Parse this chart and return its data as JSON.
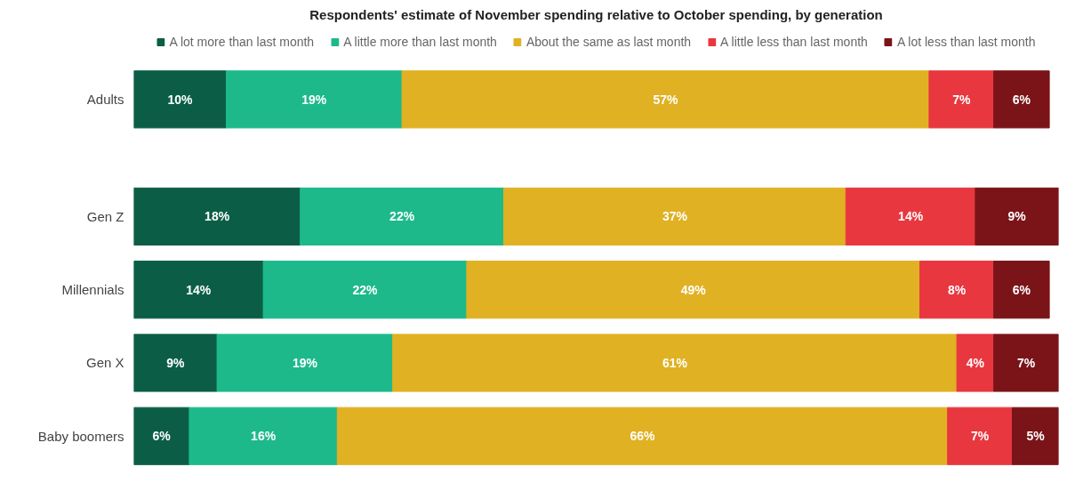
{
  "chart_data": {
    "type": "bar",
    "orientation": "horizontal",
    "stacked": true,
    "title": "Respondents' estimate of November spending relative to October spending, by generation",
    "categories": [
      "Adults",
      "Gen Z",
      "Millennials",
      "Gen X",
      "Baby boomers"
    ],
    "series": [
      {
        "name": "A lot more than last month",
        "color": "#0b5e45",
        "values": [
          10,
          18,
          14,
          9,
          6
        ],
        "value_labels": [
          "10%",
          "18%",
          "14%",
          "9%",
          "6%"
        ]
      },
      {
        "name": "A little more than last month",
        "color": "#1db98a",
        "values": [
          19,
          22,
          22,
          19,
          16
        ],
        "value_labels": [
          "19%",
          "22%",
          "22%",
          "19%",
          "16%"
        ]
      },
      {
        "name": "About the same as last month",
        "color": "#e0b123",
        "values": [
          57,
          37,
          49,
          61,
          66
        ],
        "value_labels": [
          "57%",
          "37%",
          "49%",
          "61%",
          "66%"
        ]
      },
      {
        "name": "A little less than last month",
        "color": "#e8373f",
        "values": [
          7,
          14,
          8,
          4,
          7
        ],
        "value_labels": [
          "7%",
          "14%",
          "8%",
          "4%",
          "7%"
        ]
      },
      {
        "name": "A lot less than last month",
        "color": "#7a1418",
        "values": [
          6,
          9,
          6,
          7,
          5
        ],
        "value_labels": [
          "6%",
          "9%",
          "6%",
          "7%",
          "5%"
        ]
      }
    ],
    "legend": "top",
    "grid": false,
    "tick_labels": "y"
  }
}
